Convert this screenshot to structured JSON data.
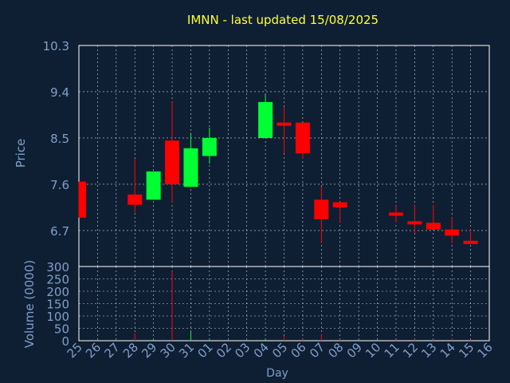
{
  "chart_data": {
    "type": "candlestick",
    "title": "IMNN - last updated 15/08/2025",
    "xlabel": "Day",
    "price_panel": {
      "ylabel": "Price",
      "ylim": [
        6.0,
        10.3
      ],
      "yticks": [
        "10.3",
        "9.4",
        "8.5",
        "7.6",
        "6.7"
      ],
      "ytick_values": [
        10.3,
        9.4,
        8.5,
        7.6,
        6.7
      ],
      "grid": true
    },
    "volume_panel": {
      "ylabel": "Volume (0000)",
      "ylim": [
        0,
        300
      ],
      "yticks": [
        "300",
        "250",
        "200",
        "150",
        "100",
        "50",
        "0"
      ],
      "ytick_values": [
        300,
        250,
        200,
        150,
        100,
        50,
        0
      ],
      "grid": true
    },
    "categories": [
      "25",
      "26",
      "27",
      "28",
      "29",
      "30",
      "31",
      "01",
      "02",
      "03",
      "04",
      "05",
      "06",
      "07",
      "08",
      "09",
      "10",
      "11",
      "12",
      "13",
      "14",
      "15",
      "16"
    ],
    "up_color": "#00ff33",
    "down_color": "#ff0000",
    "candles": [
      {
        "day": "25",
        "open": 7.65,
        "close": 6.95,
        "high": 7.65,
        "low": 6.95,
        "volume": 0
      },
      {
        "day": "28",
        "open": 7.4,
        "close": 7.2,
        "high": 8.1,
        "low": 7.05,
        "volume": 30
      },
      {
        "day": "29",
        "open": 7.3,
        "close": 7.85,
        "high": 7.85,
        "low": 7.3,
        "volume": 5
      },
      {
        "day": "30",
        "open": 8.45,
        "close": 7.6,
        "high": 9.2,
        "low": 7.25,
        "volume": 280
      },
      {
        "day": "31",
        "open": 7.55,
        "close": 8.3,
        "high": 8.6,
        "low": 7.55,
        "volume": 40
      },
      {
        "day": "01",
        "open": 8.15,
        "close": 8.5,
        "high": 8.7,
        "low": 8.0,
        "volume": 3
      },
      {
        "day": "04",
        "open": 8.5,
        "close": 9.2,
        "high": 9.35,
        "low": 8.5,
        "volume": 5
      },
      {
        "day": "05",
        "open": 8.8,
        "close": 8.75,
        "high": 9.1,
        "low": 8.2,
        "volume": 20
      },
      {
        "day": "06",
        "open": 8.8,
        "close": 8.2,
        "high": 8.8,
        "low": 8.1,
        "volume": 5
      },
      {
        "day": "07",
        "open": 7.3,
        "close": 6.92,
        "high": 7.55,
        "low": 6.45,
        "volume": 25
      },
      {
        "day": "08",
        "open": 7.25,
        "close": 7.15,
        "high": 7.25,
        "low": 6.85,
        "volume": 5
      },
      {
        "day": "11",
        "open": 7.05,
        "close": 7.02,
        "high": 7.18,
        "low": 6.85,
        "volume": 3
      },
      {
        "day": "12",
        "open": 6.88,
        "close": 6.83,
        "high": 7.2,
        "low": 6.65,
        "volume": 5
      },
      {
        "day": "13",
        "open": 6.85,
        "close": 6.72,
        "high": 7.2,
        "low": 6.72,
        "volume": 3
      },
      {
        "day": "14",
        "open": 6.72,
        "close": 6.6,
        "high": 6.95,
        "low": 6.45,
        "volume": 8
      },
      {
        "day": "15",
        "open": 6.5,
        "close": 6.45,
        "high": 6.72,
        "low": 6.45,
        "volume": 3
      }
    ]
  }
}
